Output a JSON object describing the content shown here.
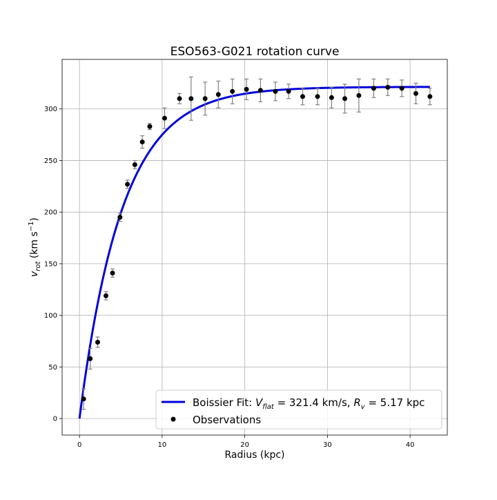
{
  "chart_data": {
    "type": "scatter",
    "title": "ESO563-G021 rotation curve",
    "xlabel": "Radius (kpc)",
    "ylabel": {
      "main": "v",
      "sub": "rot",
      "unit_start": " (km s",
      "unit_sup": "−1",
      "unit_end": ")"
    },
    "xlim": [
      -2.1,
      44.5
    ],
    "ylim": [
      -16,
      348
    ],
    "x_ticks": [
      0,
      10,
      20,
      30,
      40
    ],
    "y_ticks": [
      0,
      50,
      100,
      150,
      200,
      250,
      300
    ],
    "grid": true,
    "legend_position": "lower-right",
    "colors": {
      "fit": "#0000dd",
      "observations": "#000000",
      "error_bars": "#808080",
      "grid": "#b0b0b0"
    },
    "series": [
      {
        "name": "Boissier Fit",
        "kind": "line",
        "legend_label": {
          "prefix": "Boissier Fit: ",
          "vflat_symbol": "V",
          "vflat_sub": "flat",
          "vflat_value": " = 321.4 km/s, ",
          "rv_symbol": "R",
          "rv_sub": "v",
          "rv_value": " = 5.17 kpc"
        },
        "model": "v(r) = Vflat * (1 - exp(-r / Rv))",
        "params": {
          "Vflat": 321.4,
          "Rv": 5.17
        },
        "x_range": [
          0,
          42.4
        ]
      },
      {
        "name": "Observations",
        "kind": "errorbar",
        "x": [
          0.5,
          1.3,
          2.2,
          3.2,
          4.0,
          4.9,
          5.8,
          6.7,
          7.6,
          8.5,
          10.3,
          12.1,
          13.5,
          15.2,
          16.8,
          18.5,
          20.2,
          21.9,
          23.7,
          25.3,
          27.0,
          28.8,
          30.5,
          32.1,
          33.8,
          35.6,
          37.3,
          39.0,
          40.7,
          42.4
        ],
        "y": [
          19,
          58,
          74,
          119,
          141,
          195,
          227,
          246,
          268,
          283,
          291,
          310,
          310,
          310,
          314,
          317,
          319,
          318,
          317,
          317,
          312,
          312,
          311,
          310,
          313,
          320,
          321,
          320,
          315,
          312
        ],
        "yerr": [
          10,
          10,
          5,
          4,
          4,
          4,
          4,
          4,
          6,
          3,
          10,
          5,
          21,
          16,
          13,
          12,
          10,
          11,
          9,
          7,
          8,
          8,
          10,
          14,
          16,
          9,
          8,
          8,
          10,
          8
        ]
      }
    ]
  }
}
